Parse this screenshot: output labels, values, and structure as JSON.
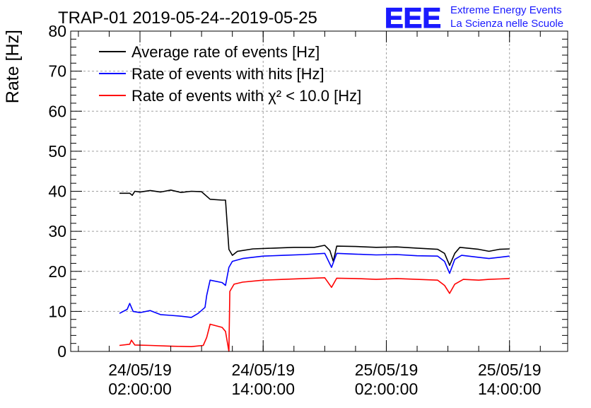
{
  "chart_data": {
    "type": "line",
    "title": "TRAP-01 2019-05-24--2019-05-25",
    "ylabel": "Rate [Hz]",
    "xlabel": "",
    "ylim": [
      0,
      80
    ],
    "yticks": [
      0,
      10,
      20,
      30,
      40,
      50,
      60,
      70,
      80
    ],
    "xlim": [
      "2019-05-23 19:15:00",
      "2019-05-25 19:40:00"
    ],
    "xticks": [
      {
        "t": "2019-05-24 02:00:00",
        "date": "24/05/19",
        "time": "02:00:00"
      },
      {
        "t": "2019-05-24 14:00:00",
        "date": "24/05/19",
        "time": "14:00:00"
      },
      {
        "t": "2019-05-25 02:00:00",
        "date": "25/05/19",
        "time": "02:00:00"
      },
      {
        "t": "2019-05-25 14:00:00",
        "date": "25/05/19",
        "time": "14:00:00"
      }
    ],
    "grid": true,
    "legend_position": "top-left",
    "series": [
      {
        "name": "Average rate of events [Hz]",
        "color": "#000000",
        "points": [
          [
            "2019-05-24 00:00",
            39.5
          ],
          [
            "2019-05-24 01:00",
            39.5
          ],
          [
            "2019-05-24 01:15",
            39.0
          ],
          [
            "2019-05-24 01:30",
            40.0
          ],
          [
            "2019-05-24 02:00",
            39.8
          ],
          [
            "2019-05-24 03:00",
            40.2
          ],
          [
            "2019-05-24 04:00",
            39.8
          ],
          [
            "2019-05-24 05:00",
            40.3
          ],
          [
            "2019-05-24 06:00",
            39.7
          ],
          [
            "2019-05-24 07:00",
            40.0
          ],
          [
            "2019-05-24 08:00",
            39.9
          ],
          [
            "2019-05-24 08:50",
            38.0
          ],
          [
            "2019-05-24 10:00",
            37.8
          ],
          [
            "2019-05-24 10:20",
            37.8
          ],
          [
            "2019-05-24 10:40",
            25.5
          ],
          [
            "2019-05-24 11:00",
            24.0
          ],
          [
            "2019-05-24 11:30",
            25.0
          ],
          [
            "2019-05-24 13:00",
            25.6
          ],
          [
            "2019-05-24 15:00",
            25.8
          ],
          [
            "2019-05-24 17:00",
            26.0
          ],
          [
            "2019-05-24 19:00",
            26.0
          ],
          [
            "2019-05-24 20:00",
            26.5
          ],
          [
            "2019-05-24 20:30",
            25.2
          ],
          [
            "2019-05-24 20:50",
            22.5
          ],
          [
            "2019-05-24 21:10",
            26.3
          ],
          [
            "2019-05-24 23:00",
            26.2
          ],
          [
            "2019-05-25 01:00",
            26.0
          ],
          [
            "2019-05-25 03:00",
            26.1
          ],
          [
            "2019-05-25 05:00",
            25.8
          ],
          [
            "2019-05-25 07:00",
            25.5
          ],
          [
            "2019-05-25 07:40",
            24.5
          ],
          [
            "2019-05-25 08:10",
            21.5
          ],
          [
            "2019-05-25 08:40",
            24.5
          ],
          [
            "2019-05-25 09:10",
            26.0
          ],
          [
            "2019-05-25 11:00",
            25.5
          ],
          [
            "2019-05-25 12:00",
            25.0
          ],
          [
            "2019-05-25 13:00",
            25.5
          ],
          [
            "2019-05-25 14:00",
            25.6
          ]
        ]
      },
      {
        "name": "Rate of events with hits [Hz]",
        "color": "#0000ff",
        "points": [
          [
            "2019-05-24 00:00",
            9.5
          ],
          [
            "2019-05-24 00:45",
            10.5
          ],
          [
            "2019-05-24 01:00",
            12.0
          ],
          [
            "2019-05-24 01:20",
            10.0
          ],
          [
            "2019-05-24 02:00",
            9.7
          ],
          [
            "2019-05-24 03:00",
            10.2
          ],
          [
            "2019-05-24 04:00",
            9.2
          ],
          [
            "2019-05-24 05:00",
            9.0
          ],
          [
            "2019-05-24 06:00",
            8.8
          ],
          [
            "2019-05-24 07:00",
            8.5
          ],
          [
            "2019-05-24 07:40",
            9.5
          ],
          [
            "2019-05-24 08:20",
            11.0
          ],
          [
            "2019-05-24 08:30",
            14.0
          ],
          [
            "2019-05-24 08:50",
            17.8
          ],
          [
            "2019-05-24 10:00",
            17.2
          ],
          [
            "2019-05-24 10:20",
            16.5
          ],
          [
            "2019-05-24 10:40",
            21.0
          ],
          [
            "2019-05-24 11:00",
            22.5
          ],
          [
            "2019-05-24 12:00",
            23.2
          ],
          [
            "2019-05-24 14:00",
            23.8
          ],
          [
            "2019-05-24 16:00",
            24.0
          ],
          [
            "2019-05-24 18:00",
            24.2
          ],
          [
            "2019-05-24 20:00",
            24.5
          ],
          [
            "2019-05-24 20:40",
            21.0
          ],
          [
            "2019-05-24 21:10",
            24.5
          ],
          [
            "2019-05-24 23:00",
            24.3
          ],
          [
            "2019-05-25 01:00",
            24.1
          ],
          [
            "2019-05-25 03:00",
            24.2
          ],
          [
            "2019-05-25 05:00",
            23.9
          ],
          [
            "2019-05-25 07:00",
            23.8
          ],
          [
            "2019-05-25 07:40",
            22.5
          ],
          [
            "2019-05-25 08:10",
            19.5
          ],
          [
            "2019-05-25 08:40",
            23.0
          ],
          [
            "2019-05-25 09:20",
            24.0
          ],
          [
            "2019-05-25 11:00",
            23.5
          ],
          [
            "2019-05-25 12:00",
            23.2
          ],
          [
            "2019-05-25 13:00",
            23.5
          ],
          [
            "2019-05-25 14:00",
            23.8
          ]
        ]
      },
      {
        "name": "Rate of events with χ² < 10.0 [Hz]",
        "color": "#ff0000",
        "points": [
          [
            "2019-05-24 00:00",
            1.5
          ],
          [
            "2019-05-24 01:00",
            1.8
          ],
          [
            "2019-05-24 01:10",
            2.8
          ],
          [
            "2019-05-24 01:30",
            1.6
          ],
          [
            "2019-05-24 03:00",
            1.5
          ],
          [
            "2019-05-24 05:00",
            1.3
          ],
          [
            "2019-05-24 07:00",
            1.2
          ],
          [
            "2019-05-24 08:10",
            1.5
          ],
          [
            "2019-05-24 08:30",
            3.5
          ],
          [
            "2019-05-24 08:50",
            6.8
          ],
          [
            "2019-05-24 10:00",
            6.0
          ],
          [
            "2019-05-24 10:20",
            5.0
          ],
          [
            "2019-05-24 10:40",
            0.0
          ],
          [
            "2019-05-24 10:45",
            15.0
          ],
          [
            "2019-05-24 11:10",
            16.8
          ],
          [
            "2019-05-24 12:00",
            17.3
          ],
          [
            "2019-05-24 14:00",
            17.8
          ],
          [
            "2019-05-24 16:00",
            18.0
          ],
          [
            "2019-05-24 18:00",
            18.2
          ],
          [
            "2019-05-24 20:00",
            18.4
          ],
          [
            "2019-05-24 20:40",
            16.0
          ],
          [
            "2019-05-24 21:10",
            18.3
          ],
          [
            "2019-05-24 23:00",
            18.2
          ],
          [
            "2019-05-25 01:00",
            18.0
          ],
          [
            "2019-05-25 03:00",
            18.2
          ],
          [
            "2019-05-25 05:00",
            18.0
          ],
          [
            "2019-05-25 07:00",
            17.8
          ],
          [
            "2019-05-25 07:40",
            16.5
          ],
          [
            "2019-05-25 08:10",
            14.5
          ],
          [
            "2019-05-25 08:40",
            16.8
          ],
          [
            "2019-05-25 09:30",
            18.0
          ],
          [
            "2019-05-25 11:00",
            17.8
          ],
          [
            "2019-05-25 12:00",
            18.0
          ],
          [
            "2019-05-25 13:00",
            18.1
          ],
          [
            "2019-05-25 14:00",
            18.2
          ]
        ]
      }
    ]
  },
  "logo": {
    "mark": "EEE",
    "line1": "Extreme Energy Events",
    "line2": "La Scienza nelle Scuole",
    "color": "#1a1aff"
  }
}
